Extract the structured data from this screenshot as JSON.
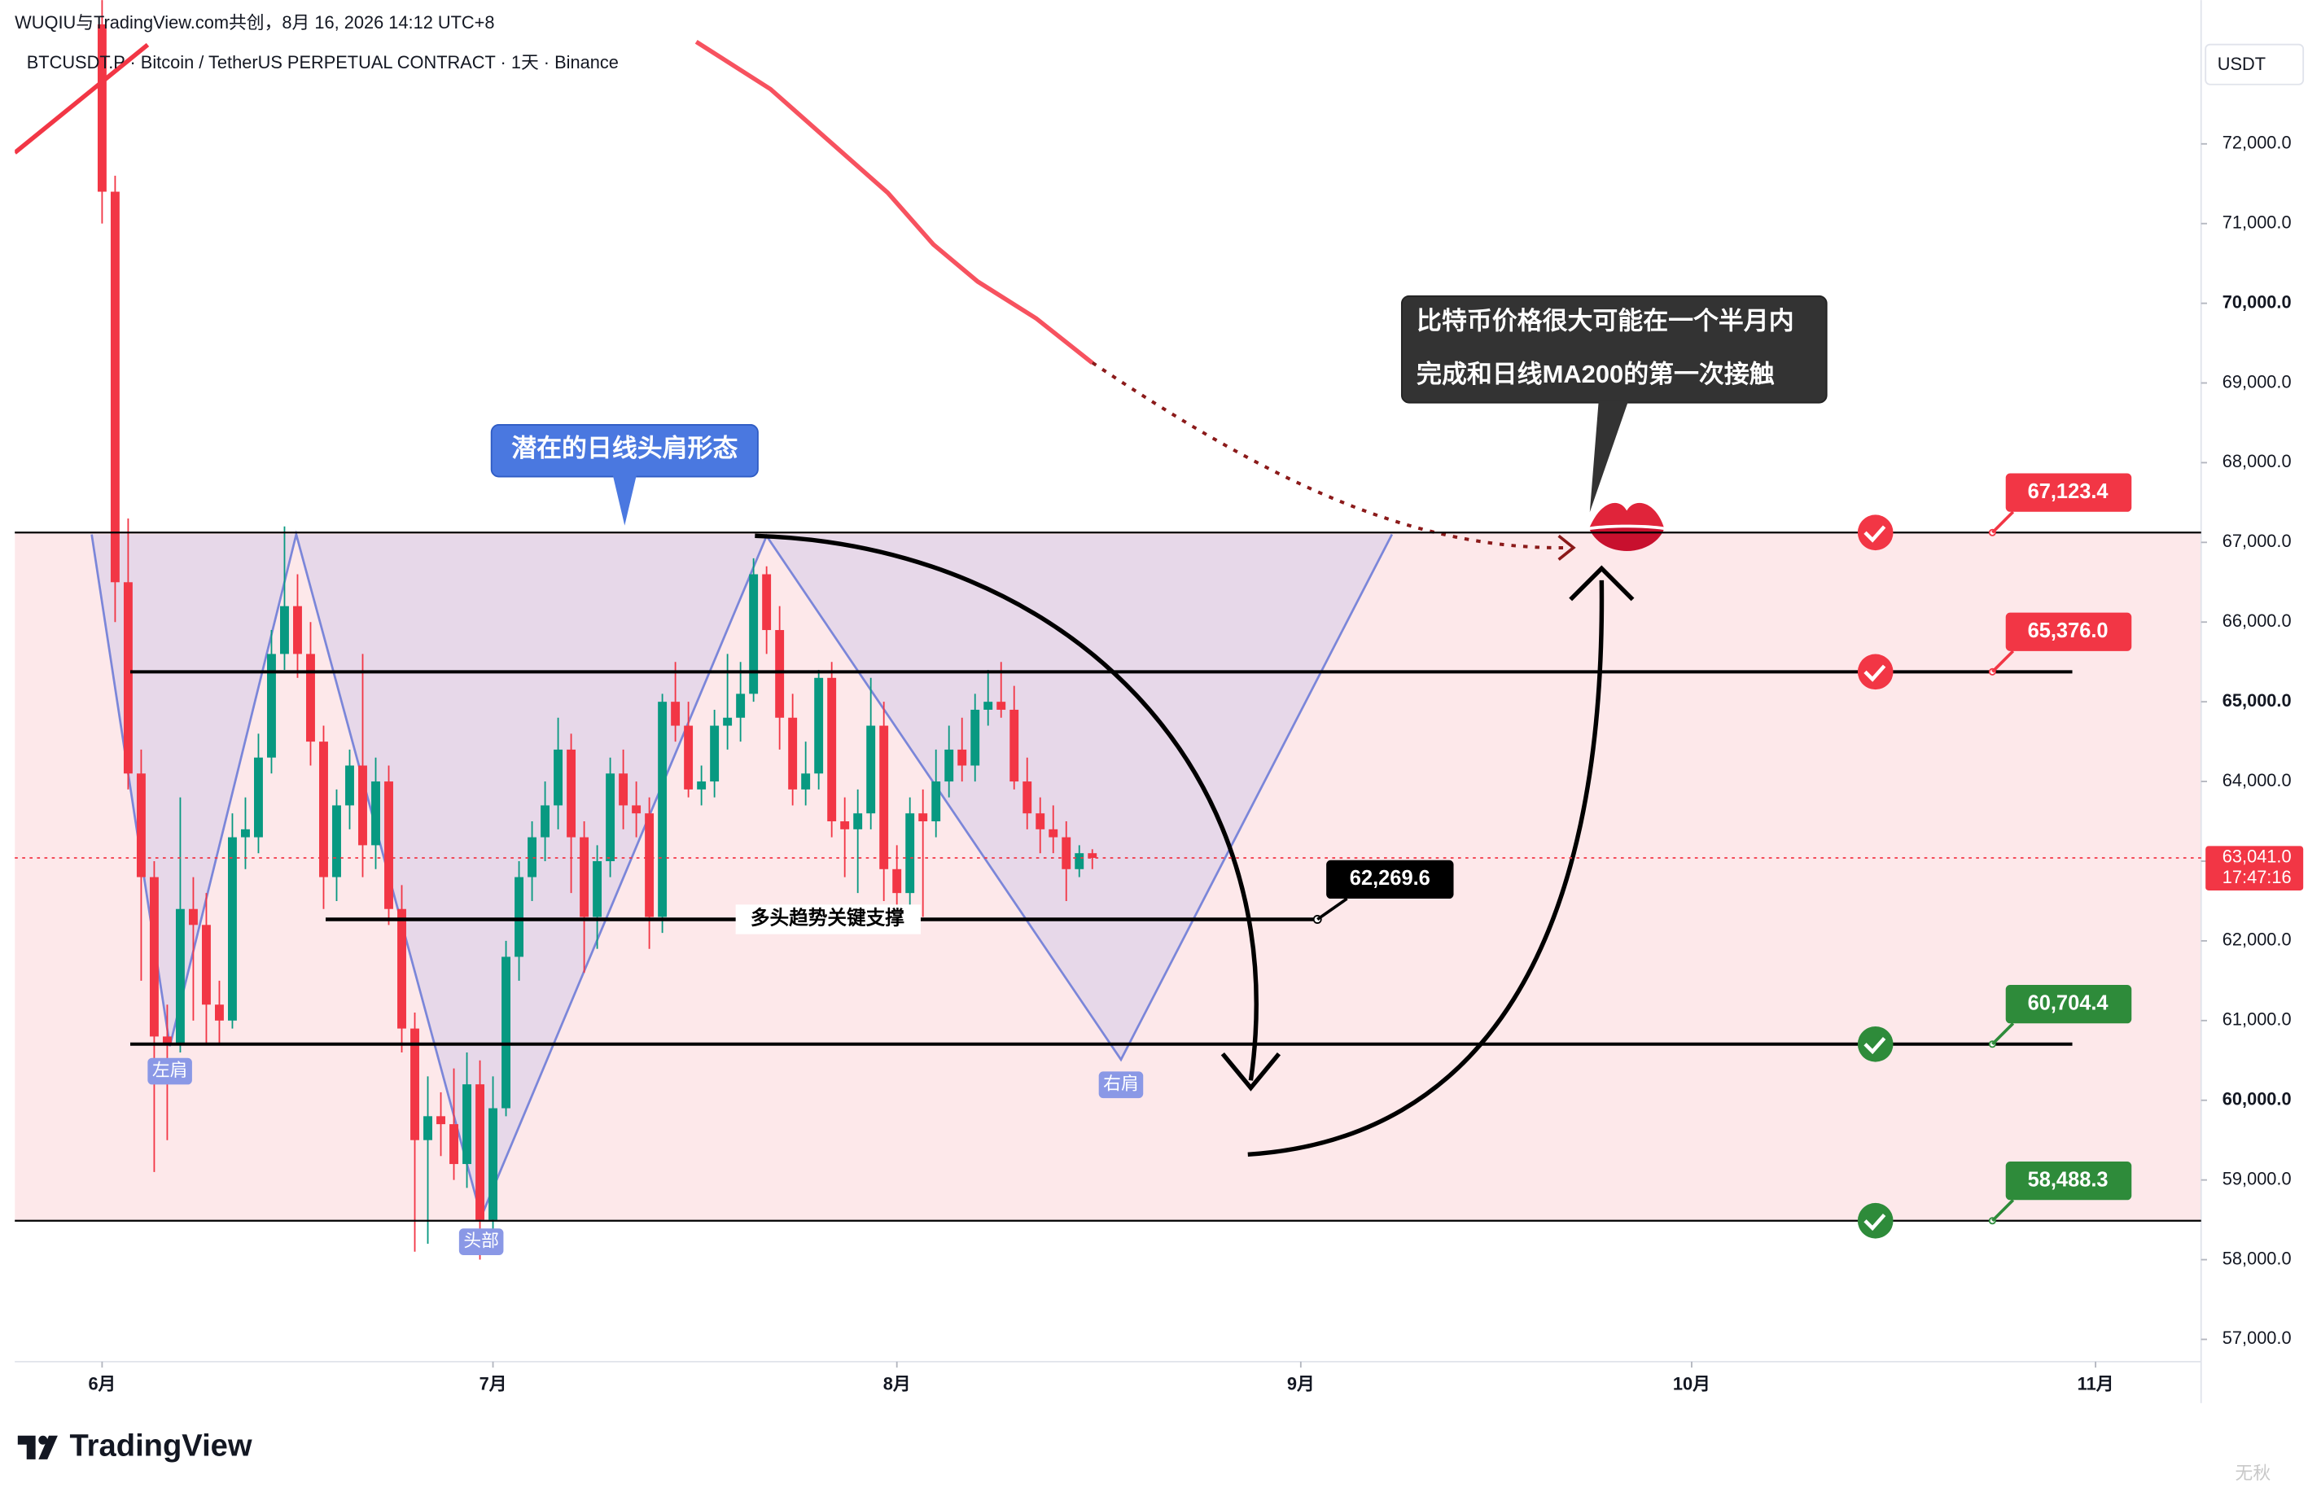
{
  "chart_data": {
    "type": "candlestick",
    "source": "WUQIU与TradingView.com共创，8月 16, 2026 14:12 UTC+8",
    "title": "BTCUSDT.P · Bitcoin / TetherUS PERPETUAL CONTRACT · 1天 · Binance",
    "currency": "USDT",
    "x": [
      0,
      1,
      2,
      3,
      4,
      5,
      6,
      7,
      8,
      9,
      10,
      11,
      12,
      13,
      14,
      15,
      16,
      17,
      18,
      19,
      20,
      21,
      22,
      23,
      24,
      25,
      26,
      27,
      28,
      29,
      30,
      31,
      32,
      33,
      34,
      35,
      36,
      37,
      38,
      39,
      40,
      41,
      42,
      43,
      44,
      45,
      46,
      47,
      48,
      49,
      50,
      51,
      52,
      53,
      54,
      55,
      56,
      57,
      58,
      59,
      60,
      61,
      62,
      63,
      64,
      65,
      66,
      67,
      68,
      69,
      70,
      71,
      72,
      73,
      74,
      75,
      76
    ],
    "open": [
      73500,
      71400,
      66500,
      64100,
      62800,
      60800,
      60700,
      62400,
      62200,
      61200,
      61000,
      63300,
      63300,
      64300,
      65600,
      66200,
      65600,
      64500,
      62800,
      63700,
      64200,
      63200,
      64000,
      62400,
      60900,
      59500,
      59800,
      59700,
      59200,
      60200,
      58500,
      59900,
      61800,
      62800,
      63300,
      63700,
      64400,
      63300,
      62300,
      63000,
      64100,
      63700,
      63600,
      62300,
      65000,
      64700,
      63900,
      64000,
      64700,
      64800,
      65100,
      66600,
      65900,
      64800,
      63900,
      64100,
      65300,
      63500,
      63400,
      63600,
      64700,
      62900,
      62600,
      63600,
      63500,
      64000,
      64400,
      64200,
      64900,
      65000,
      64900,
      64000,
      63600,
      63400,
      63300,
      62900,
      63100
    ],
    "high": [
      74000,
      71600,
      67300,
      64400,
      63000,
      61200,
      63800,
      62800,
      62600,
      61500,
      63600,
      63800,
      64600,
      65900,
      67200,
      66600,
      66000,
      64700,
      63900,
      64400,
      65600,
      64300,
      64200,
      62700,
      61100,
      60300,
      60100,
      60400,
      60600,
      60500,
      60300,
      62000,
      63000,
      63500,
      64000,
      64800,
      64600,
      63500,
      63200,
      64300,
      64400,
      64000,
      63800,
      65100,
      65500,
      65000,
      64200,
      64900,
      65600,
      65500,
      66800,
      66700,
      66200,
      65100,
      64500,
      65400,
      65500,
      63800,
      63900,
      65300,
      65000,
      63200,
      63800,
      63900,
      64400,
      64700,
      64800,
      65100,
      65400,
      65500,
      65200,
      64300,
      63800,
      63700,
      63500,
      63200,
      63150
    ],
    "low": [
      71000,
      66000,
      63900,
      61500,
      59100,
      59500,
      60600,
      61000,
      60700,
      60700,
      60900,
      62900,
      63100,
      64100,
      65400,
      65300,
      64200,
      62400,
      62500,
      63400,
      62800,
      62900,
      62200,
      60600,
      58100,
      58200,
      59300,
      59000,
      58900,
      58000,
      58300,
      59800,
      61500,
      62500,
      63000,
      63400,
      62600,
      61600,
      61900,
      62800,
      63400,
      63300,
      61900,
      62100,
      64500,
      63800,
      63700,
      63800,
      64400,
      64500,
      65000,
      65600,
      64400,
      63700,
      63700,
      63900,
      63300,
      62800,
      62600,
      63400,
      62500,
      62400,
      62400,
      62300,
      63300,
      63800,
      64000,
      64000,
      64700,
      64800,
      63900,
      63400,
      63100,
      63100,
      62500,
      62800,
      62900
    ],
    "close": [
      71400,
      66500,
      64100,
      62800,
      60800,
      60700,
      62400,
      62200,
      61200,
      61000,
      63300,
      63400,
      64300,
      65600,
      66200,
      65600,
      64500,
      62800,
      63700,
      64200,
      63200,
      64000,
      62400,
      60900,
      59500,
      59800,
      59700,
      59200,
      60200,
      58500,
      59900,
      61800,
      62800,
      63300,
      63700,
      64400,
      63300,
      62300,
      63000,
      64100,
      63700,
      63600,
      62300,
      65000,
      64700,
      63900,
      64000,
      64700,
      64800,
      65100,
      66600,
      65900,
      64800,
      63900,
      64100,
      65300,
      63500,
      63400,
      63600,
      64700,
      62900,
      62600,
      63600,
      63500,
      64000,
      64400,
      64200,
      64900,
      65000,
      64900,
      64000,
      63600,
      63400,
      63300,
      62900,
      63100,
      63041
    ],
    "up_color": "#089981",
    "down_color": "#f23645",
    "xlim": [
      -6.7,
      161.1
    ],
    "xticks": [
      {
        "value": 0,
        "label": "6月"
      },
      {
        "value": 30,
        "label": "7月"
      },
      {
        "value": 61,
        "label": "8月"
      },
      {
        "value": 92,
        "label": "9月"
      },
      {
        "value": 122,
        "label": "10月"
      },
      {
        "value": 153,
        "label": "11月"
      }
    ],
    "ylim": [
      56720,
      73340
    ],
    "yticks": [
      {
        "value": 57000,
        "label": "57,000.0"
      },
      {
        "value": 58000,
        "label": "58,000.0"
      },
      {
        "value": 59000,
        "label": "59,000.0"
      },
      {
        "value": 60000,
        "label": "60,000.0"
      },
      {
        "value": 61000,
        "label": "61,000.0"
      },
      {
        "value": 62000,
        "label": "62,000.0"
      },
      {
        "value": 63000,
        "label": "63,000.0"
      },
      {
        "value": 64000,
        "label": "64,000.0"
      },
      {
        "value": 65000,
        "label": "65,000.0"
      },
      {
        "value": 66000,
        "label": "66,000.0"
      },
      {
        "value": 67000,
        "label": "67,000.0"
      },
      {
        "value": 68000,
        "label": "68,000.0"
      },
      {
        "value": 69000,
        "label": "69,000.0"
      },
      {
        "value": 70000,
        "label": "70,000.0"
      },
      {
        "value": 71000,
        "label": "71,000.0"
      },
      {
        "value": 72000,
        "label": "72,000.0"
      }
    ],
    "last_price": {
      "value": 63041,
      "label": "63,041.0"
    },
    "countdown": "17:47:16",
    "lines": [
      {
        "color": "#f7525f",
        "x": [
          45.6,
          51.3,
          55.8,
          60.3,
          63.8,
          67.2,
          71.7,
          76.0
        ],
        "values": [
          73281,
          72687,
          72037,
          71387,
          70738,
          70273,
          69809,
          69252
        ]
      },
      {
        "color": "#f23645",
        "x": [
          -6.7,
          3.5
        ],
        "values": [
          71889,
          73244
        ]
      }
    ],
    "pattern": {
      "color": "#7b86d9",
      "fill": "#9aa0e6",
      "x": [
        -0.8,
        5.2,
        14.9,
        29.1,
        51,
        78.2,
        99
      ],
      "values": [
        67100,
        60680,
        67100,
        58540,
        67080,
        60510,
        67100
      ],
      "labels": [
        "左肩",
        "头部",
        "右肩"
      ]
    },
    "zone_color": "#fde8ea",
    "levels": [
      {
        "value": 67123.4,
        "label": "67,123.4",
        "color": "#f23645"
      },
      {
        "value": 65376.0,
        "label": "65,376.0",
        "color": "#f23645"
      },
      {
        "value": 62269.6,
        "label": "62,269.6",
        "color": "#000000"
      },
      {
        "value": 60704.4,
        "label": "60,704.4",
        "color": "#2e8b3a"
      },
      {
        "value": 58488.3,
        "label": "58,488.3",
        "color": "#2e8b3a"
      }
    ],
    "annotations": {
      "pattern_callout": "潜在的日线头肩形态",
      "forecast": [
        "比特币价格很大可能在一个半月内",
        "完成和日线MA200的第一次接触"
      ],
      "support": "多头趋势关键支撑"
    },
    "branding": "TradingView",
    "watermark": "无秋"
  }
}
